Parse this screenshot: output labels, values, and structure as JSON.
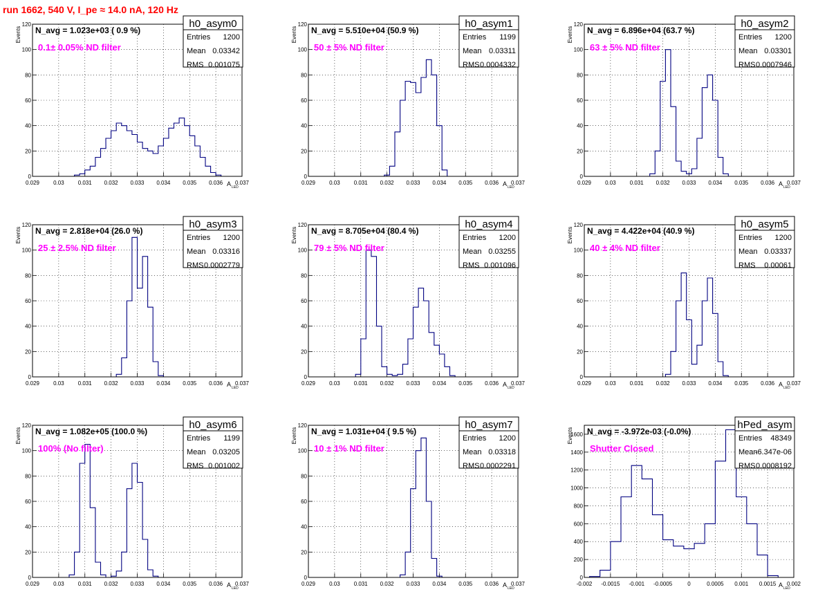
{
  "header": {
    "run_title": "run 1662,   540 V, I_pe ≈ 14.0 nA, 120 Hz"
  },
  "colors": {
    "histogram_line": "#000080",
    "title_red": "#ff0000",
    "annotation_magenta": "#ff00ff",
    "grid": "#000000"
  },
  "chart_data": [
    {
      "type": "histogram",
      "name": "h0_asym0",
      "navg_label": "N_avg = 1.023e+03 ( 0.9 %)",
      "annotation": "0.1± 0.05% ND filter",
      "stats": {
        "entries_label": "Entries",
        "entries": "1200",
        "mean_label": "Mean",
        "mean": "0.03342",
        "rms_label": "RMS",
        "rms": "0.001075"
      },
      "xlabel_main": "A",
      "xlabel_sub": "LED",
      "ylabel": "Events",
      "xlim": [
        0.029,
        0.037
      ],
      "ylim": [
        0,
        120
      ],
      "xticks": [
        "0.029",
        "0.03",
        "0.031",
        "0.032",
        "0.033",
        "0.034",
        "0.035",
        "0.036",
        "0.037"
      ],
      "yticks": [
        "0",
        "20",
        "40",
        "60",
        "80",
        "100",
        "120"
      ],
      "bins": {
        "x": [
          0.0305,
          0.0307,
          0.0309,
          0.0311,
          0.0313,
          0.0315,
          0.0317,
          0.0319,
          0.0321,
          0.0323,
          0.0325,
          0.0327,
          0.0329,
          0.0331,
          0.0333,
          0.0335,
          0.0337,
          0.0339,
          0.0341,
          0.0343,
          0.0345,
          0.0347,
          0.0349,
          0.0351,
          0.0353,
          0.0355,
          0.0357,
          0.0359,
          0.0361,
          0.0363
        ],
        "y": [
          0,
          1,
          2,
          5,
          8,
          15,
          22,
          30,
          36,
          42,
          40,
          36,
          33,
          27,
          22,
          20,
          18,
          24,
          30,
          38,
          42,
          46,
          40,
          32,
          24,
          15,
          8,
          3,
          1,
          0
        ]
      }
    },
    {
      "type": "histogram",
      "name": "h0_asym1",
      "navg_label": "N_avg = 5.510e+04 (50.9 %)",
      "annotation": "50 ± 5% ND filter",
      "stats": {
        "entries_label": "Entries",
        "entries": "1199",
        "mean_label": "Mean",
        "mean": "0.03311",
        "rms_label": "RMS",
        "rms": "0.0004332"
      },
      "xlabel_main": "A",
      "xlabel_sub": "LED",
      "ylabel": "Events",
      "xlim": [
        0.029,
        0.037
      ],
      "ylim": [
        0,
        120
      ],
      "xticks": [
        "0.029",
        "0.03",
        "0.031",
        "0.032",
        "0.033",
        "0.034",
        "0.035",
        "0.036",
        "0.037"
      ],
      "yticks": [
        "0",
        "20",
        "40",
        "60",
        "80",
        "100",
        "120"
      ],
      "bins": {
        "x": [
          0.032,
          0.0322,
          0.0324,
          0.0326,
          0.0328,
          0.033,
          0.0332,
          0.0334,
          0.0336,
          0.0338,
          0.034,
          0.0342
        ],
        "y": [
          1,
          8,
          35,
          60,
          75,
          74,
          66,
          78,
          92,
          80,
          40,
          5
        ]
      }
    },
    {
      "type": "histogram",
      "name": "h0_asym2",
      "navg_label": "N_avg = 6.896e+04 (63.7 %)",
      "annotation": "63 ± 5% ND filter",
      "stats": {
        "entries_label": "Entries",
        "entries": "1200",
        "mean_label": "Mean",
        "mean": "0.03301",
        "rms_label": "RMS",
        "rms": "0.0007946"
      },
      "xlabel_main": "A",
      "xlabel_sub": "LED",
      "ylabel": "Events",
      "xlim": [
        0.029,
        0.037
      ],
      "ylim": [
        0,
        120
      ],
      "xticks": [
        "0.029",
        "0.03",
        "0.031",
        "0.032",
        "0.033",
        "0.034",
        "0.035",
        "0.036",
        "0.037"
      ],
      "yticks": [
        "0",
        "20",
        "40",
        "60",
        "80",
        "100",
        "120"
      ],
      "bins": {
        "x": [
          0.0316,
          0.0318,
          0.032,
          0.0322,
          0.0324,
          0.0326,
          0.0328,
          0.033,
          0.0332,
          0.0334,
          0.0336,
          0.0338,
          0.034,
          0.0342,
          0.0344
        ],
        "y": [
          2,
          20,
          75,
          100,
          55,
          12,
          4,
          2,
          6,
          30,
          70,
          80,
          60,
          15,
          2
        ]
      }
    },
    {
      "type": "histogram",
      "name": "h0_asym3",
      "navg_label": "N_avg = 2.818e+04 (26.0 %)",
      "annotation": "25 ± 2.5% ND filter",
      "stats": {
        "entries_label": "Entries",
        "entries": "1200",
        "mean_label": "Mean",
        "mean": "0.03316",
        "rms_label": "RMS",
        "rms": "0.0002779"
      },
      "xlabel_main": "A",
      "xlabel_sub": "LED",
      "ylabel": "Events",
      "xlim": [
        0.029,
        0.037
      ],
      "ylim": [
        0,
        120
      ],
      "xticks": [
        "0.029",
        "0.03",
        "0.031",
        "0.032",
        "0.033",
        "0.034",
        "0.035",
        "0.036",
        "0.037"
      ],
      "yticks": [
        "0",
        "20",
        "40",
        "60",
        "80",
        "100",
        "120"
      ],
      "bins": {
        "x": [
          0.0323,
          0.0325,
          0.0327,
          0.0329,
          0.0331,
          0.0333,
          0.0335,
          0.0337,
          0.0339
        ],
        "y": [
          2,
          15,
          60,
          110,
          70,
          95,
          55,
          12,
          1
        ]
      }
    },
    {
      "type": "histogram",
      "name": "h0_asym4",
      "navg_label": "N_avg = 8.705e+04 (80.4 %)",
      "annotation": "79 ± 5% ND filter",
      "stats": {
        "entries_label": "Entries",
        "entries": "1200",
        "mean_label": "Mean",
        "mean": "0.03255",
        "rms_label": "RMS",
        "rms": "0.001096"
      },
      "xlabel_main": "A",
      "xlabel_sub": "LED",
      "ylabel": "Events",
      "xlim": [
        0.029,
        0.037
      ],
      "ylim": [
        0,
        120
      ],
      "xticks": [
        "0.029",
        "0.03",
        "0.031",
        "0.032",
        "0.033",
        "0.034",
        "0.035",
        "0.036",
        "0.037"
      ],
      "yticks": [
        "0",
        "20",
        "40",
        "60",
        "80",
        "100",
        "120"
      ],
      "bins": {
        "x": [
          0.0309,
          0.0311,
          0.0313,
          0.0315,
          0.0317,
          0.0319,
          0.0321,
          0.0323,
          0.0325,
          0.0327,
          0.0329,
          0.0331,
          0.0333,
          0.0335,
          0.0337,
          0.0339,
          0.0341,
          0.0343,
          0.0345
        ],
        "y": [
          2,
          30,
          100,
          95,
          40,
          8,
          2,
          1,
          2,
          10,
          30,
          55,
          70,
          60,
          35,
          25,
          18,
          8,
          1
        ]
      }
    },
    {
      "type": "histogram",
      "name": "h0_asym5",
      "navg_label": "N_avg = 4.422e+04 (40.9 %)",
      "annotation": "40 ± 4% ND filter",
      "stats": {
        "entries_label": "Entries",
        "entries": "1200",
        "mean_label": "Mean",
        "mean": "0.03337",
        "rms_label": "RMS",
        "rms": "0.00061"
      },
      "xlabel_main": "A",
      "xlabel_sub": "LED",
      "ylabel": "Events",
      "xlim": [
        0.029,
        0.037
      ],
      "ylim": [
        0,
        120
      ],
      "xticks": [
        "0.029",
        "0.03",
        "0.031",
        "0.032",
        "0.033",
        "0.034",
        "0.035",
        "0.036",
        "0.037"
      ],
      "yticks": [
        "0",
        "20",
        "40",
        "60",
        "80",
        "100",
        "120"
      ],
      "bins": {
        "x": [
          0.0322,
          0.0324,
          0.0326,
          0.0328,
          0.033,
          0.0332,
          0.0334,
          0.0336,
          0.0338,
          0.034,
          0.0342,
          0.0344
        ],
        "y": [
          2,
          20,
          60,
          82,
          45,
          10,
          25,
          60,
          78,
          50,
          12,
          1
        ]
      }
    },
    {
      "type": "histogram",
      "name": "h0_asym6",
      "navg_label": "N_avg = 1.082e+05 (100.0 %)",
      "annotation": "100% (No filter)",
      "stats": {
        "entries_label": "Entries",
        "entries": "1199",
        "mean_label": "Mean",
        "mean": "0.03205",
        "rms_label": "RMS",
        "rms": "0.001002"
      },
      "xlabel_main": "A",
      "xlabel_sub": "LED",
      "ylabel": "Events",
      "xlim": [
        0.029,
        0.037
      ],
      "ylim": [
        0,
        120
      ],
      "xticks": [
        "0.029",
        "0.03",
        "0.031",
        "0.032",
        "0.033",
        "0.034",
        "0.035",
        "0.036",
        "0.037"
      ],
      "yticks": [
        "0",
        "20",
        "40",
        "60",
        "80",
        "100",
        "120"
      ],
      "bins": {
        "x": [
          0.0305,
          0.0307,
          0.0309,
          0.0311,
          0.0313,
          0.0315,
          0.0317,
          0.0319,
          0.0321,
          0.0323,
          0.0325,
          0.0327,
          0.0329,
          0.0331,
          0.0333,
          0.0335,
          0.0337
        ],
        "y": [
          2,
          20,
          90,
          105,
          55,
          12,
          2,
          0,
          1,
          5,
          20,
          70,
          90,
          75,
          30,
          6,
          1
        ]
      }
    },
    {
      "type": "histogram",
      "name": "h0_asym7",
      "navg_label": "N_avg = 1.031e+04 ( 9.5 %)",
      "annotation": "10 ± 1% ND filter",
      "stats": {
        "entries_label": "Entries",
        "entries": "1200",
        "mean_label": "Mean",
        "mean": "0.03318",
        "rms_label": "RMS",
        "rms": "0.0002291"
      },
      "xlabel_main": "A",
      "xlabel_sub": "LED",
      "ylabel": "Events",
      "xlim": [
        0.029,
        0.037
      ],
      "ylim": [
        0,
        120
      ],
      "xticks": [
        "0.029",
        "0.03",
        "0.031",
        "0.032",
        "0.033",
        "0.034",
        "0.035",
        "0.036",
        "0.037"
      ],
      "yticks": [
        "0",
        "20",
        "40",
        "60",
        "80",
        "100",
        "120"
      ],
      "bins": {
        "x": [
          0.0326,
          0.0328,
          0.033,
          0.0332,
          0.0334,
          0.0336,
          0.0338,
          0.034
        ],
        "y": [
          2,
          20,
          70,
          100,
          110,
          60,
          15,
          1
        ]
      }
    },
    {
      "type": "histogram",
      "name": "hPed_asym",
      "navg_label": "N_avg = -3.972e-03 (-0.0%)",
      "annotation": "Shutter Closed",
      "stats": {
        "entries_label": "Entries",
        "entries": "48349",
        "mean_label": "Mean",
        "mean": "-6.347e-06",
        "rms_label": "RMS",
        "rms": "0.0008192"
      },
      "xlabel_main": "A",
      "xlabel_sub": "LED",
      "ylabel": "Events",
      "xlim": [
        -0.002,
        0.002
      ],
      "ylim": [
        0,
        1700
      ],
      "xticks": [
        "-0.002",
        "-0.0015",
        "-0.001",
        "-0.0005",
        "0",
        "0.0005",
        "0.001",
        "0.0015",
        "0.002"
      ],
      "yticks": [
        "0",
        "200",
        "400",
        "600",
        "800",
        "1000",
        "1200",
        "1400",
        "1600"
      ],
      "bins": {
        "x": [
          -0.0018,
          -0.0016,
          -0.0014,
          -0.0012,
          -0.001,
          -0.0008,
          -0.0006,
          -0.0004,
          -0.0002,
          0.0,
          0.0002,
          0.0004,
          0.0006,
          0.0008,
          0.001,
          0.0012,
          0.0014,
          0.0016
        ],
        "y": [
          10,
          80,
          400,
          900,
          1250,
          1100,
          700,
          420,
          350,
          320,
          380,
          600,
          1300,
          1650,
          900,
          600,
          250,
          20
        ]
      }
    }
  ]
}
